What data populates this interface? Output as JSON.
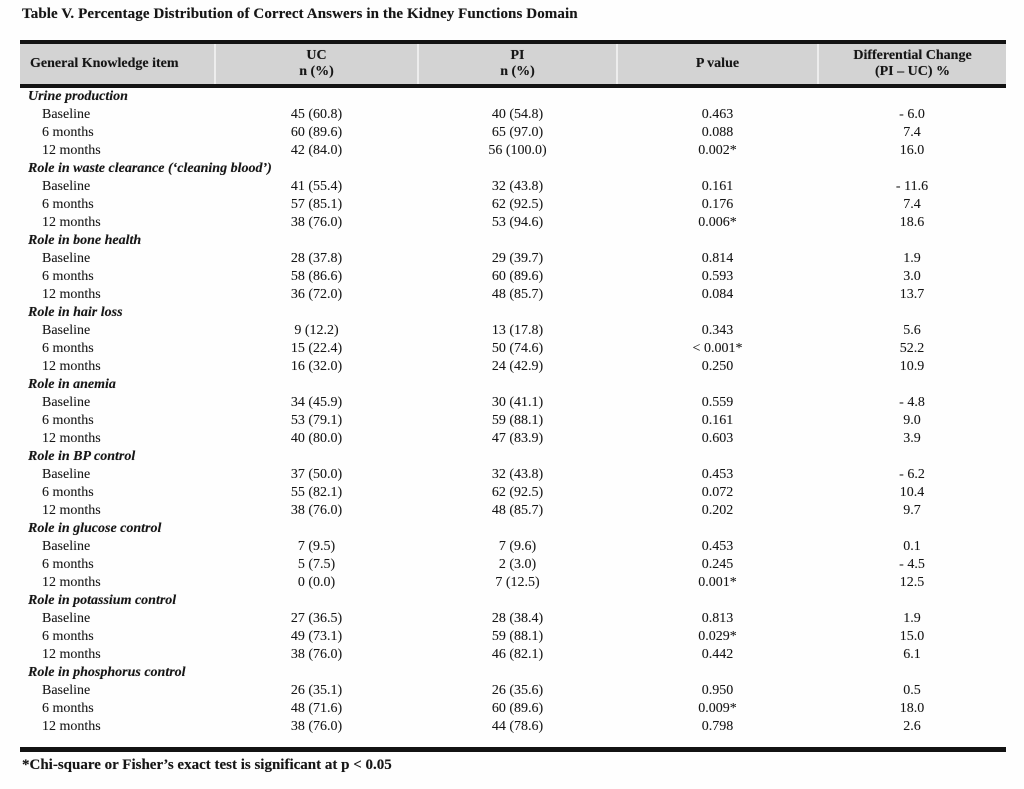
{
  "page": {
    "title": "Table V. Percentage Distribution of Correct Answers in the Kidney Functions Domain",
    "footnote": "*Chi-square or Fisher’s exact test is significant at p < 0.05"
  },
  "colors": {
    "header_background": "#d3d3d3",
    "rule": "#131313",
    "text": "#161616"
  },
  "table": {
    "columns": [
      {
        "line1": "General Knowledge item",
        "line2": ""
      },
      {
        "line1": "UC",
        "line2": "n (%)"
      },
      {
        "line1": "PI",
        "line2": "n (%)"
      },
      {
        "line1": "P value",
        "line2": ""
      },
      {
        "line1": "Differential Change",
        "line2": "(PI – UC) %"
      }
    ],
    "sections": [
      {
        "name": "Urine production",
        "rows": [
          {
            "label": "Baseline",
            "uc": "45 (60.8)",
            "pi": "40 (54.8)",
            "p": "0.463",
            "diff": "- 6.0"
          },
          {
            "label": "6 months",
            "uc": "60 (89.6)",
            "pi": "65 (97.0)",
            "p": "0.088",
            "diff": "7.4"
          },
          {
            "label": "12 months",
            "uc": "42 (84.0)",
            "pi": "56 (100.0)",
            "p": "0.002*",
            "diff": "16.0"
          }
        ]
      },
      {
        "name": "Role in waste clearance (‘cleaning blood’)",
        "rows": [
          {
            "label": "Baseline",
            "uc": "41 (55.4)",
            "pi": "32 (43.8)",
            "p": "0.161",
            "diff": "- 11.6"
          },
          {
            "label": "6 months",
            "uc": "57 (85.1)",
            "pi": "62 (92.5)",
            "p": "0.176",
            "diff": "7.4"
          },
          {
            "label": "12 months",
            "uc": "38 (76.0)",
            "pi": "53 (94.6)",
            "p": "0.006*",
            "diff": "18.6"
          }
        ]
      },
      {
        "name": "Role in bone health",
        "rows": [
          {
            "label": "Baseline",
            "uc": "28 (37.8)",
            "pi": "29 (39.7)",
            "p": "0.814",
            "diff": "1.9"
          },
          {
            "label": "6 months",
            "uc": "58 (86.6)",
            "pi": "60 (89.6)",
            "p": "0.593",
            "diff": "3.0"
          },
          {
            "label": "12 months",
            "uc": "36 (72.0)",
            "pi": "48 (85.7)",
            "p": "0.084",
            "diff": "13.7"
          }
        ]
      },
      {
        "name": "Role in hair loss",
        "rows": [
          {
            "label": "Baseline",
            "uc": "9 (12.2)",
            "pi": "13 (17.8)",
            "p": "0.343",
            "diff": "5.6"
          },
          {
            "label": "6 months",
            "uc": "15 (22.4)",
            "pi": "50 (74.6)",
            "p": "< 0.001*",
            "diff": "52.2"
          },
          {
            "label": "12 months",
            "uc": "16 (32.0)",
            "pi": "24 (42.9)",
            "p": "0.250",
            "diff": "10.9"
          }
        ]
      },
      {
        "name": "Role in anemia",
        "rows": [
          {
            "label": "Baseline",
            "uc": "34 (45.9)",
            "pi": "30 (41.1)",
            "p": "0.559",
            "diff": "- 4.8"
          },
          {
            "label": "6 months",
            "uc": "53 (79.1)",
            "pi": "59 (88.1)",
            "p": "0.161",
            "diff": "9.0"
          },
          {
            "label": "12 months",
            "uc": "40 (80.0)",
            "pi": "47 (83.9)",
            "p": "0.603",
            "diff": "3.9"
          }
        ]
      },
      {
        "name": "Role in BP control",
        "rows": [
          {
            "label": "Baseline",
            "uc": "37 (50.0)",
            "pi": "32 (43.8)",
            "p": "0.453",
            "diff": "- 6.2"
          },
          {
            "label": "6 months",
            "uc": "55 (82.1)",
            "pi": "62 (92.5)",
            "p": "0.072",
            "diff": "10.4"
          },
          {
            "label": "12 months",
            "uc": "38 (76.0)",
            "pi": "48 (85.7)",
            "p": "0.202",
            "diff": "9.7"
          }
        ]
      },
      {
        "name": "Role in glucose control",
        "rows": [
          {
            "label": "Baseline",
            "uc": "7 (9.5)",
            "pi": "7 (9.6)",
            "p": "0.453",
            "diff": "0.1"
          },
          {
            "label": "6 months",
            "uc": "5 (7.5)",
            "pi": "2 (3.0)",
            "p": "0.245",
            "diff": "- 4.5"
          },
          {
            "label": "12 months",
            "uc": "0 (0.0)",
            "pi": "7 (12.5)",
            "p": "0.001*",
            "diff": "12.5"
          }
        ]
      },
      {
        "name": "Role in potassium control",
        "rows": [
          {
            "label": "Baseline",
            "uc": "27 (36.5)",
            "pi": "28 (38.4)",
            "p": "0.813",
            "diff": "1.9"
          },
          {
            "label": "6 months",
            "uc": "49 (73.1)",
            "pi": "59 (88.1)",
            "p": "0.029*",
            "diff": "15.0"
          },
          {
            "label": "12 months",
            "uc": "38 (76.0)",
            "pi": "46 (82.1)",
            "p": "0.442",
            "diff": "6.1"
          }
        ]
      },
      {
        "name": "Role in phosphorus control",
        "rows": [
          {
            "label": "Baseline",
            "uc": "26 (35.1)",
            "pi": "26 (35.6)",
            "p": "0.950",
            "diff": "0.5"
          },
          {
            "label": "6 months",
            "uc": "48 (71.6)",
            "pi": "60 (89.6)",
            "p": "0.009*",
            "diff": "18.0"
          },
          {
            "label": "12 months",
            "uc": "38 (76.0)",
            "pi": "44 (78.6)",
            "p": "0.798",
            "diff": "2.6"
          }
        ]
      }
    ]
  }
}
